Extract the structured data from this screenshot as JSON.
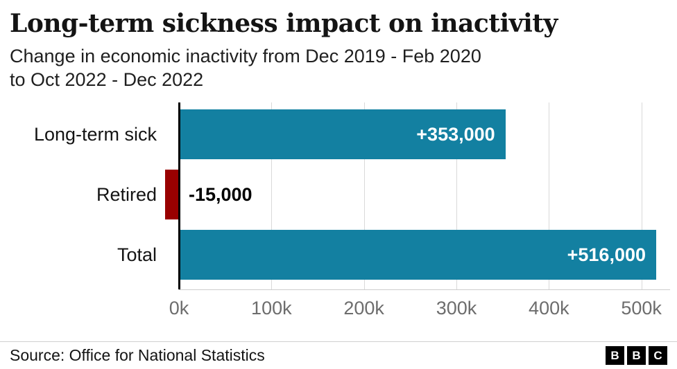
{
  "header": {
    "title": "Long-term sickness impact on inactivity",
    "subtitle_lines": [
      "Change in economic inactivity from Dec 2019 - Feb 2020",
      "to Oct 2022 - Dec 2022"
    ]
  },
  "chart_data": {
    "type": "bar",
    "orientation": "horizontal",
    "title": "Long-term sickness impact on inactivity",
    "subtitle": "Change in economic inactivity from Dec 2019 - Feb 2020 to Oct 2022 - Dec 2022",
    "categories": [
      "Long-term sick",
      "Retired",
      "Total"
    ],
    "values": [
      353000,
      -15000,
      516000
    ],
    "value_labels": [
      "+353,000",
      "-15,000",
      "+516,000"
    ],
    "bar_colors": [
      "#1380A1",
      "#990000",
      "#1380A1"
    ],
    "x_tick_labels": [
      "0k",
      "100k",
      "200k",
      "300k",
      "400k",
      "500k"
    ],
    "x_tick_values": [
      0,
      100000,
      200000,
      300000,
      400000,
      500000
    ],
    "x_max": 531000,
    "xlim": [
      -20000,
      531000
    ],
    "grid": true,
    "legend": "none",
    "source": "Office for National Statistics"
  },
  "footer": {
    "source": "Source: Office for National Statistics",
    "logo": [
      "B",
      "B",
      "C"
    ]
  }
}
